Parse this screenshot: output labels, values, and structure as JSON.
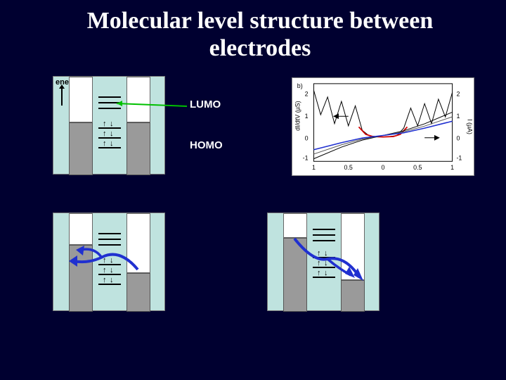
{
  "background_color": "#000030",
  "title": "Molecular level structure between electrodes",
  "labels": {
    "energy": "energy",
    "lumo": "LUMO",
    "homo": "HOMO"
  },
  "panel_bg": "#bfe3df",
  "electrode_color": "#9a9a9a",
  "arrow_colors": {
    "lumo_pointer": "#00c000",
    "tunnel": "#2030d0"
  },
  "energy_diagrams": {
    "panel_tl": {
      "left_elec": {
        "top_white_h": 65,
        "grey_h": 75
      },
      "right_elec": {
        "top_white_h": 65,
        "grey_h": 75
      },
      "lumo_lines": [
        28,
        36,
        44
      ],
      "homo_lines": [
        72,
        86,
        100
      ],
      "homo_spins": true,
      "lumo_pointer": true
    },
    "panel_bl": {
      "left_elec": {
        "top_white_h": 45,
        "grey_h": 95
      },
      "right_elec": {
        "top_white_h": 85,
        "grey_h": 55
      },
      "lumo_lines": [
        28,
        36,
        44
      ],
      "homo_lines": [
        72,
        86,
        100
      ],
      "homo_spins": true,
      "tunnel_arrows": "left"
    },
    "panel_br": {
      "left_elec": {
        "top_white_h": 35,
        "grey_h": 105
      },
      "right_elec": {
        "top_white_h": 95,
        "grey_h": 45
      },
      "lumo_lines": [
        22,
        30,
        38
      ],
      "homo_lines": [
        62,
        76,
        90
      ],
      "homo_spins": true,
      "tunnel_arrows": "right"
    }
  },
  "graph": {
    "type": "line",
    "background_color": "#ffffff",
    "xlim": [
      -1,
      1
    ],
    "xticks": [
      -1,
      -0.5,
      0,
      0.5,
      1
    ],
    "xtick_labels_shown": [
      "1",
      "0.5",
      "0",
      "0.5",
      "1"
    ],
    "left_axis": {
      "label": "dI/dtV (µS)",
      "lim": [
        -1,
        2.5
      ],
      "ticks": [
        -1,
        0,
        1,
        2
      ]
    },
    "right_axis": {
      "label": "I (µA)",
      "lim": [
        -1,
        2
      ],
      "ticks": [
        -1,
        0,
        1,
        2
      ]
    },
    "panel_tag": "b)",
    "curves": {
      "didv_main": {
        "color": "#000000",
        "points": [
          [
            -1,
            2.2
          ],
          [
            -0.9,
            1.1
          ],
          [
            -0.8,
            1.9
          ],
          [
            -0.7,
            0.7
          ],
          [
            -0.6,
            1.7
          ],
          [
            -0.5,
            0.6
          ],
          [
            -0.4,
            1.5
          ],
          [
            -0.3,
            0.4
          ],
          [
            -0.2,
            0.15
          ],
          [
            -0.1,
            0.12
          ],
          [
            0,
            0.1
          ],
          [
            0.1,
            0.12
          ],
          [
            0.2,
            0.16
          ],
          [
            0.3,
            0.5
          ],
          [
            0.4,
            1.4
          ],
          [
            0.5,
            0.6
          ],
          [
            0.6,
            1.6
          ],
          [
            0.7,
            0.7
          ],
          [
            0.8,
            1.8
          ],
          [
            0.9,
            1.0
          ],
          [
            1,
            2.1
          ]
        ]
      },
      "didv_fit": {
        "color": "#d00000",
        "points": [
          [
            -0.35,
            0.55
          ],
          [
            -0.25,
            0.22
          ],
          [
            -0.15,
            0.12
          ],
          [
            0,
            0.1
          ],
          [
            0.15,
            0.12
          ],
          [
            0.25,
            0.22
          ],
          [
            0.35,
            0.55
          ]
        ]
      },
      "iv_a": {
        "color": "#000000",
        "points": [
          [
            -1,
            -0.9
          ],
          [
            -0.6,
            -0.45
          ],
          [
            -0.3,
            -0.18
          ],
          [
            0,
            0
          ],
          [
            0.3,
            0.18
          ],
          [
            0.6,
            0.45
          ],
          [
            1,
            0.9
          ]
        ]
      },
      "iv_b": {
        "color": "#2030d0",
        "points": [
          [
            -1,
            -0.55
          ],
          [
            -0.6,
            -0.28
          ],
          [
            -0.3,
            -0.1
          ],
          [
            0,
            0
          ],
          [
            0.3,
            0.1
          ],
          [
            0.6,
            0.28
          ],
          [
            1,
            0.55
          ]
        ]
      },
      "iv_c": {
        "color": "#555555",
        "points": [
          [
            -1,
            -0.72
          ],
          [
            -0.6,
            -0.36
          ],
          [
            -0.3,
            -0.14
          ],
          [
            0,
            0
          ],
          [
            0.3,
            0.14
          ],
          [
            0.6,
            0.36
          ],
          [
            1,
            0.72
          ]
        ]
      }
    }
  }
}
